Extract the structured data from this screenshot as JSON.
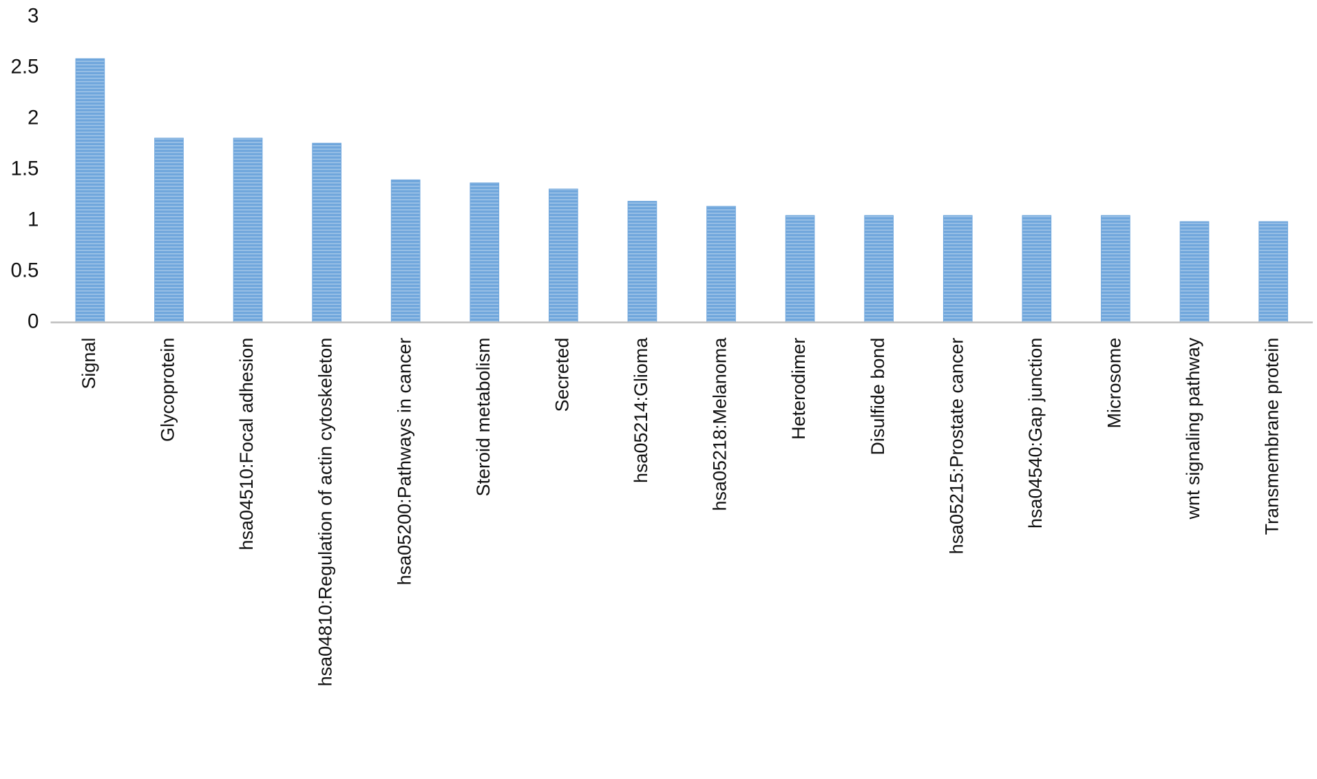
{
  "chart_data": {
    "type": "bar",
    "categories": [
      "Signal",
      "Glycoprotein",
      "hsa04510:Focal adhesion",
      "hsa04810:Regulation of actin cytoskeleton",
      "hsa05200:Pathways in cancer",
      "Steroid metabolism",
      "Secreted",
      "hsa05214:Glioma",
      "hsa05218:Melanoma",
      "Heterodimer",
      "Disulfide bond",
      "hsa05215:Prostate cancer",
      "hsa04540:Gap junction",
      "Microsome",
      "wnt signaling pathway",
      "Transmembrane protein"
    ],
    "values": [
      2.59,
      1.81,
      1.81,
      1.76,
      1.4,
      1.37,
      1.31,
      1.19,
      1.14,
      1.05,
      1.05,
      1.05,
      1.05,
      1.05,
      0.99,
      0.99
    ],
    "color": "#6fa6dc",
    "ylim": [
      0,
      3
    ],
    "yticks": [
      0,
      0.5,
      1,
      1.5,
      2,
      2.5,
      3
    ],
    "grid": false
  }
}
